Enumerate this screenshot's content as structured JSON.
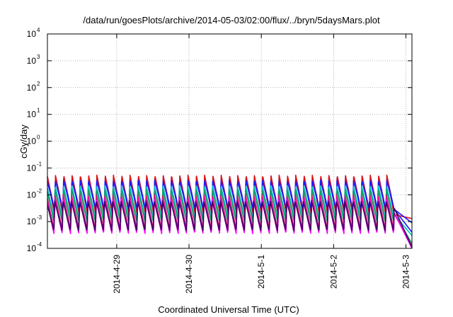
{
  "chart_data": {
    "type": "line",
    "title": "/data/run/goesPlots/archive/2014-05-03/02:00/flux/../bryn/5daysMars.plot",
    "xlabel": "Coordinated Universal Time (UTC)",
    "ylabel": "cGy/day",
    "yscale": "log",
    "ylim": [
      0.0001,
      10000
    ],
    "xlim": [
      "2014-04-28T01:00",
      "2014-05-03T02:00"
    ],
    "y_ticks": [
      {
        "mantissa": "10",
        "exp": "-4"
      },
      {
        "mantissa": "10",
        "exp": "-3"
      },
      {
        "mantissa": "10",
        "exp": "-2"
      },
      {
        "mantissa": "10",
        "exp": "-1"
      },
      {
        "mantissa": "10",
        "exp": "0"
      },
      {
        "mantissa": "10",
        "exp": "1"
      },
      {
        "mantissa": "10",
        "exp": "2"
      },
      {
        "mantissa": "10",
        "exp": "3"
      },
      {
        "mantissa": "10",
        "exp": "4"
      }
    ],
    "x_ticks": [
      {
        "label": "2014-4-29",
        "t": "2014-04-29T00:00"
      },
      {
        "label": "2014-4-30",
        "t": "2014-04-30T00:00"
      },
      {
        "label": "2014-5-1",
        "t": "2014-05-01T00:00"
      },
      {
        "label": "2014-5-2",
        "t": "2014-05-02T00:00"
      },
      {
        "label": "2014-5-3",
        "t": "2014-05-03T00:00"
      }
    ],
    "grid": true,
    "cycle_hours": 2.75,
    "series": [
      {
        "color": "#1a1aff",
        "peak": 0.05,
        "trough": 0.0025,
        "tail_end": 0.0004
      },
      {
        "color": "#e01010",
        "peak": 0.055,
        "trough": 0.0017,
        "tail_end": 0.0013
      },
      {
        "color": "#1a1aff",
        "peak": 0.035,
        "trough": 0.0028,
        "tail_end": 0.0009
      },
      {
        "color": "#00c0c0",
        "peak": 0.022,
        "trough": 0.0012,
        "tail_end": 0.0003
      },
      {
        "color": "#10a060",
        "peak": 0.016,
        "trough": 0.0009,
        "tail_end": 0.00015
      },
      {
        "color": "#e01080",
        "peak": 0.01,
        "trough": 0.0005,
        "tail_end": 0.00012
      },
      {
        "color": "#ff00ff",
        "peak": 0.007,
        "trough": 0.00035,
        "tail_end": 0.0001
      },
      {
        "color": "#400060",
        "peak": 0.006,
        "trough": 0.00045,
        "tail_end": 0.00011
      }
    ]
  }
}
